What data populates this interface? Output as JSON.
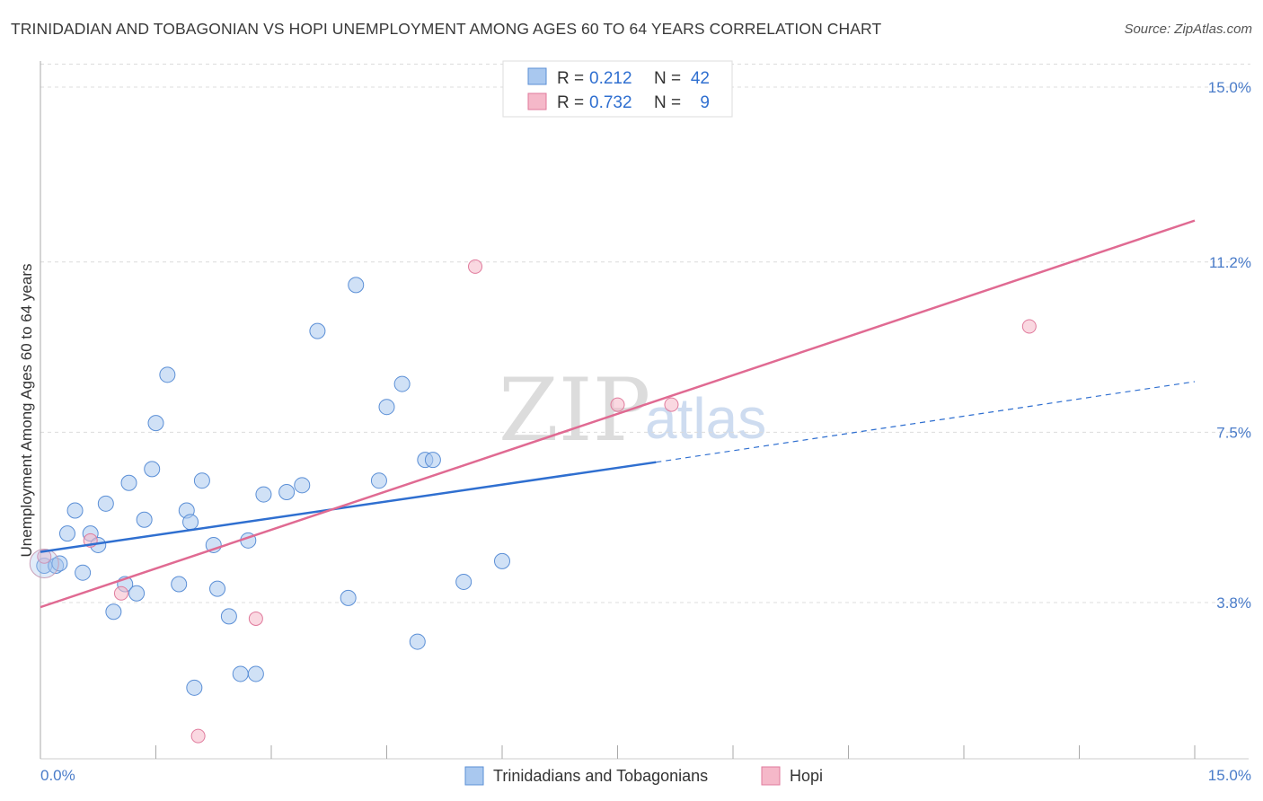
{
  "header": {
    "title": "TRINIDADIAN AND TOBAGONIAN VS HOPI UNEMPLOYMENT AMONG AGES 60 TO 64 YEARS CORRELATION CHART",
    "source": "Source: ZipAtlas.com"
  },
  "watermark": {
    "zip": "ZIP",
    "atlas": "atlas"
  },
  "legend_top": {
    "rows": [
      {
        "r_label": "R =",
        "r_value": "0.212",
        "n_label": "N =",
        "n_value": "42",
        "color": "#a9c8ef"
      },
      {
        "r_label": "R =",
        "r_value": "0.732",
        "n_label": "N =",
        "n_value": "9",
        "color": "#f5b8c9"
      }
    ]
  },
  "chart_data": {
    "type": "scatter",
    "title": "TRINIDADIAN AND TOBAGONIAN VS HOPI UNEMPLOYMENT AMONG AGES 60 TO 64 YEARS CORRELATION CHART",
    "xlabel": "",
    "ylabel": "Unemployment Among Ages 60 to 64 years",
    "xlim": [
      0,
      15
    ],
    "ylim": [
      0,
      15.5
    ],
    "x_tick_labels": [
      "0.0%",
      "15.0%"
    ],
    "y_ticks": [
      3.8,
      7.5,
      11.2,
      15.0
    ],
    "y_tick_labels": [
      "3.8%",
      "7.5%",
      "11.2%",
      "15.0%"
    ],
    "series": [
      {
        "name": "Trinidadians and Tobagonians",
        "color": "#a9c8ef",
        "stroke": "#5b8fd6",
        "trend_color": "#2f6fd0",
        "trend": {
          "x0": 0,
          "y0": 4.9,
          "x1": 8.0,
          "y1": 6.85,
          "x_dash_end": 15.0,
          "y_dash_end": 8.6
        },
        "points": [
          [
            0.05,
            4.6
          ],
          [
            0.2,
            4.6
          ],
          [
            0.25,
            4.65
          ],
          [
            0.35,
            5.3
          ],
          [
            0.45,
            5.8
          ],
          [
            0.55,
            4.45
          ],
          [
            0.65,
            5.3
          ],
          [
            0.75,
            5.05
          ],
          [
            0.85,
            5.95
          ],
          [
            0.95,
            3.6
          ],
          [
            1.1,
            4.2
          ],
          [
            1.15,
            6.4
          ],
          [
            1.25,
            4.0
          ],
          [
            1.35,
            5.6
          ],
          [
            1.45,
            6.7
          ],
          [
            1.5,
            7.7
          ],
          [
            1.65,
            8.75
          ],
          [
            1.8,
            4.2
          ],
          [
            1.9,
            5.8
          ],
          [
            1.95,
            5.55
          ],
          [
            2.0,
            1.95
          ],
          [
            2.1,
            6.45
          ],
          [
            2.25,
            5.05
          ],
          [
            2.3,
            4.1
          ],
          [
            2.45,
            3.5
          ],
          [
            2.6,
            2.25
          ],
          [
            2.7,
            5.15
          ],
          [
            2.8,
            2.25
          ],
          [
            2.9,
            6.15
          ],
          [
            3.2,
            6.2
          ],
          [
            3.4,
            6.35
          ],
          [
            3.6,
            9.7
          ],
          [
            4.0,
            3.9
          ],
          [
            4.1,
            10.7
          ],
          [
            4.4,
            6.45
          ],
          [
            4.5,
            8.05
          ],
          [
            4.7,
            8.55
          ],
          [
            4.9,
            2.95
          ],
          [
            5.0,
            6.9
          ],
          [
            5.1,
            6.9
          ],
          [
            5.5,
            4.25
          ],
          [
            6.0,
            4.7
          ]
        ]
      },
      {
        "name": "Hopi",
        "color": "#f5b8c9",
        "stroke": "#e07a9c",
        "trend_color": "#e06a92",
        "trend": {
          "x0": 0,
          "y0": 3.7,
          "x1": 15.0,
          "y1": 12.1
        },
        "points": [
          [
            0.05,
            4.8
          ],
          [
            0.65,
            5.15
          ],
          [
            1.05,
            4.0
          ],
          [
            2.05,
            0.9
          ],
          [
            2.8,
            3.45
          ],
          [
            5.65,
            11.1
          ],
          [
            7.5,
            8.1
          ],
          [
            8.2,
            8.1
          ],
          [
            12.85,
            9.8
          ]
        ]
      }
    ],
    "legend": [
      "Trinidadians and Tobagonians",
      "Hopi"
    ]
  }
}
